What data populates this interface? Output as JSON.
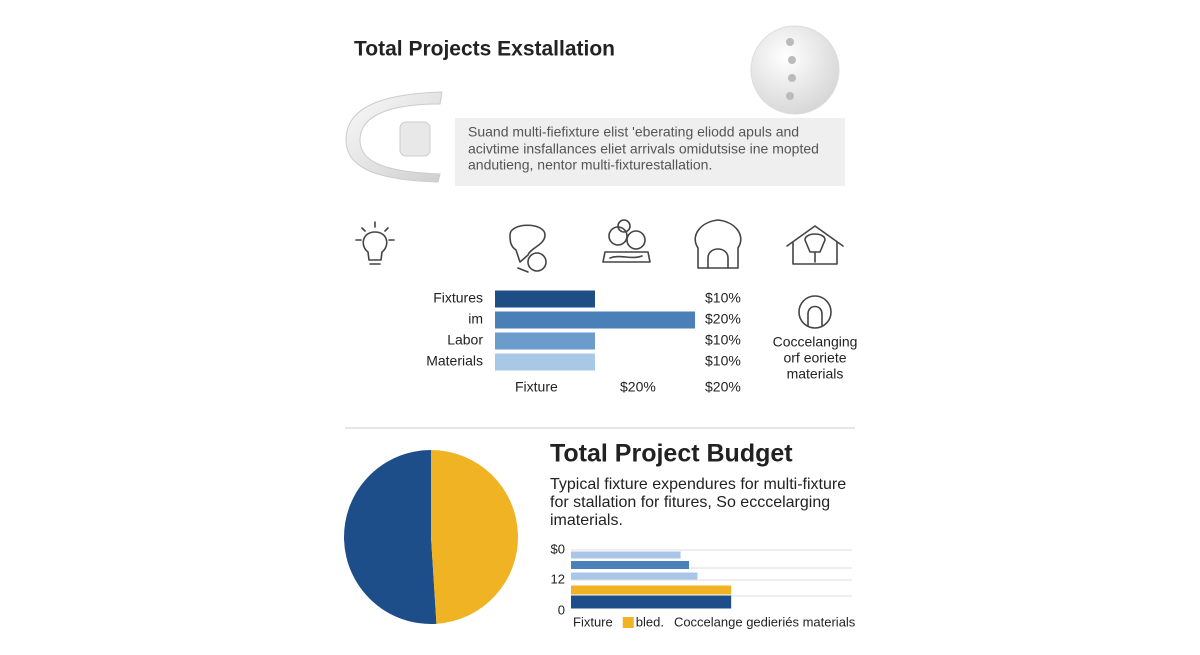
{
  "header": {
    "title": "Total Projects Exstallation",
    "description": [
      "Suand multi-fiefixture elist 'eberating eliodd apuls and",
      "acivtime insfallances eliet arrivals omidutsise ine mopted",
      "andutieng, nentor multi-fixturestallation."
    ]
  },
  "side_note": [
    "Coccelanging",
    "orf eoriete",
    "materials"
  ],
  "budget": {
    "title": "Total Project Budget",
    "text": [
      "Typical fixture expendures for multi-fixture",
      "for stallation for fitures, So ecccelarging",
      "imaterials."
    ]
  },
  "chart_data": [
    {
      "type": "hbar",
      "categories": [
        "Fixtures",
        "im",
        "Labor",
        "Materials"
      ],
      "values": [
        10,
        20,
        10,
        10
      ],
      "value_labels": [
        "$10%",
        "$20%",
        "$10%",
        "$10%"
      ],
      "colors": [
        "#1f4e87",
        "#4a7fb8",
        "#6b9ccc",
        "#a8c8e6"
      ],
      "xlim": [
        0,
        20
      ],
      "footer": [
        "Fixture",
        "$20%",
        "$20%"
      ]
    },
    {
      "type": "pie",
      "values": [
        51,
        49
      ],
      "colors": [
        "#1d4e89",
        "#f0b323"
      ]
    },
    {
      "type": "hbar-small",
      "values": [
        39,
        42,
        45,
        57,
        57
      ],
      "colors": [
        "#a9c6e8",
        "#4a7fb8",
        "#a9c6e8",
        "#f0b323",
        "#1d4e89"
      ],
      "xlim": [
        0,
        100
      ],
      "axis_labels": [
        "$0",
        "12",
        "0"
      ],
      "legend": [
        {
          "name": "Fixture"
        },
        {
          "name": "bled.",
          "color": "#f0b323"
        },
        {
          "name": "Coccelange gedieriés materials"
        }
      ]
    }
  ]
}
